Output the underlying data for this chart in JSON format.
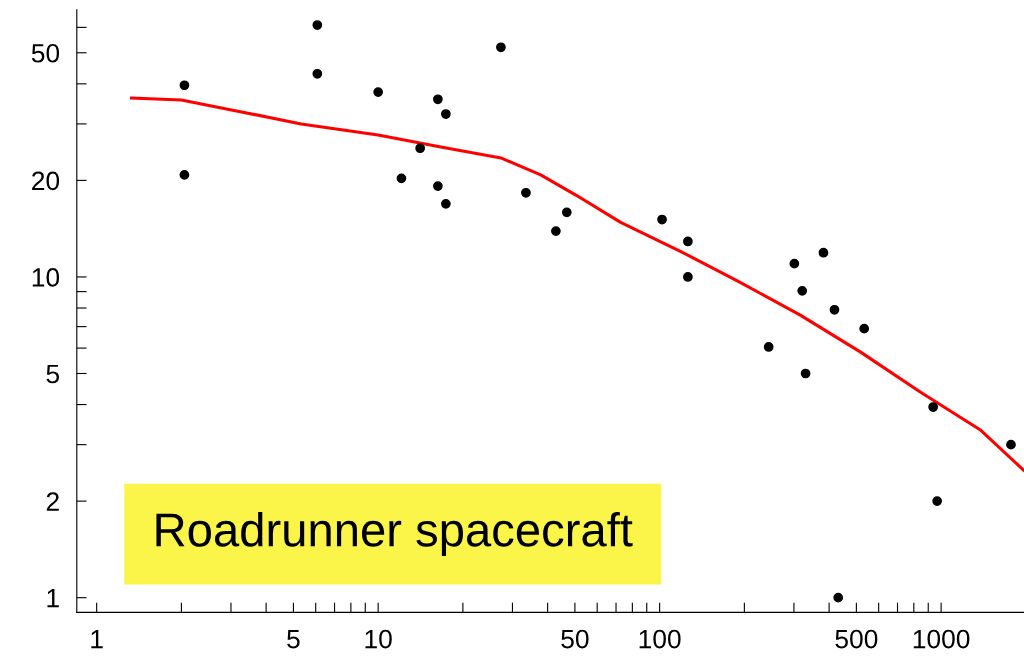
{
  "chart_data": {
    "type": "scatter",
    "log": "xy",
    "grid": false,
    "marker": "circle",
    "xlim": [
      0.85,
      1970
    ],
    "ylim": [
      0.9,
      68
    ],
    "xticks": [
      1,
      {
        "value": 2,
        "label": null
      },
      {
        "value": 3,
        "label": null
      },
      {
        "value": 4,
        "label": null
      },
      5,
      {
        "value": 6,
        "label": null
      },
      {
        "value": 7,
        "label": null
      },
      {
        "value": 8,
        "label": null
      },
      {
        "value": 9,
        "label": null
      },
      10,
      {
        "value": 20,
        "label": null
      },
      {
        "value": 30,
        "label": null
      },
      {
        "value": 40,
        "label": null
      },
      50,
      {
        "value": 60,
        "label": null
      },
      {
        "value": 70,
        "label": null
      },
      {
        "value": 80,
        "label": null
      },
      {
        "value": 90,
        "label": null
      },
      100,
      {
        "value": 200,
        "label": null
      },
      {
        "value": 300,
        "label": null
      },
      {
        "value": 400,
        "label": null
      },
      500,
      {
        "value": 600,
        "label": null
      },
      {
        "value": 700,
        "label": null
      },
      {
        "value": 800,
        "label": null
      },
      {
        "value": 900,
        "label": null
      },
      1000
    ],
    "yticks": [
      1,
      2,
      {
        "value": 3,
        "label": null
      },
      {
        "value": 4,
        "label": null
      },
      5,
      {
        "value": 6,
        "label": null
      },
      {
        "value": 7,
        "label": null
      },
      {
        "value": 8,
        "label": null
      },
      {
        "value": 9,
        "label": null
      },
      10,
      20,
      {
        "value": 30,
        "label": null
      },
      {
        "value": 40,
        "label": null
      },
      50,
      {
        "value": 60,
        "label": null
      }
    ],
    "annotations": [
      "Roadrunner spacecraft"
    ],
    "series": [
      {
        "color": "#000000",
        "x": [
          2.05,
          2.05,
          6.08,
          6.08,
          10,
          12.1,
          14.1,
          16.3,
          16.3,
          17.4,
          17.4,
          27.3,
          33.5,
          42.8,
          46.8,
          102,
          126,
          126,
          244,
          301,
          321,
          330,
          382,
          418,
          431,
          533,
          937,
          968,
          1771
        ],
        "values": [
          39.6,
          20.8,
          61,
          43,
          37.7,
          20.3,
          25.2,
          35.8,
          19.2,
          32.2,
          16.9,
          52,
          18.3,
          13.9,
          15.9,
          15.1,
          12.9,
          10,
          6.05,
          11,
          9.05,
          5,
          11.9,
          7.9,
          1,
          6.9,
          3.93,
          2.0,
          3.0
        ]
      },
      {
        "type": "line",
        "color": "#ff0000",
        "marker": "none",
        "line_style": "solid",
        "x": [
          1.33,
          2.0,
          3.27,
          5.33,
          10,
          16.7,
          27.3,
          37.8,
          50.4,
          72.7,
          119,
          194,
          316,
          516,
          843,
          1375,
          1960
        ],
        "values": [
          36.1,
          35.6,
          32.7,
          30.0,
          27.7,
          25.4,
          23.5,
          20.8,
          18.0,
          14.8,
          12.0,
          9.6,
          7.6,
          5.84,
          4.38,
          3.34,
          2.5
        ]
      }
    ]
  }
}
